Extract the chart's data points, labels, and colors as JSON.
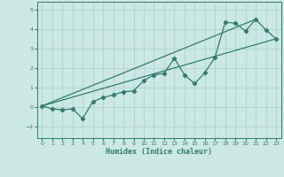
{
  "title": "",
  "xlabel": "Humidex (Indice chaleur)",
  "ylabel": "",
  "bg_color": "#cce8e4",
  "line_color": "#2e7d6e",
  "grid_color": "#aed4cf",
  "xlim": [
    -0.5,
    23.5
  ],
  "ylim": [
    -1.6,
    5.4
  ],
  "xticks": [
    0,
    1,
    2,
    3,
    4,
    5,
    6,
    7,
    8,
    9,
    10,
    11,
    12,
    13,
    14,
    15,
    16,
    17,
    18,
    19,
    20,
    21,
    22,
    23
  ],
  "yticks": [
    -1,
    0,
    1,
    2,
    3,
    4,
    5
  ],
  "line1_x": [
    0,
    1,
    2,
    3,
    4,
    5,
    6,
    7,
    8,
    9,
    10,
    11,
    12,
    13,
    14,
    15,
    16,
    17,
    18,
    19,
    20,
    21,
    22,
    23
  ],
  "line1_y": [
    0.05,
    -0.1,
    -0.15,
    -0.1,
    -0.6,
    0.28,
    0.48,
    0.62,
    0.78,
    0.82,
    1.35,
    1.65,
    1.72,
    2.5,
    1.65,
    1.2,
    1.75,
    2.55,
    4.35,
    4.3,
    3.9,
    4.5,
    3.95,
    3.5
  ],
  "line2_x": [
    0,
    23
  ],
  "line2_y": [
    0.05,
    3.5
  ],
  "line3_x": [
    0,
    21
  ],
  "line3_y": [
    0.05,
    4.5
  ]
}
